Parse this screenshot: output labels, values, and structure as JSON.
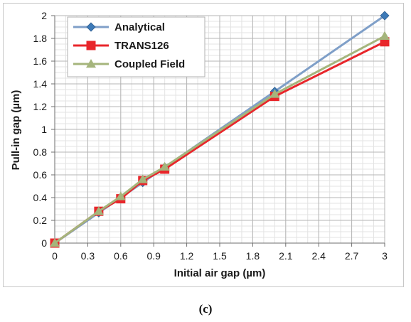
{
  "caption": "(c)",
  "chart_data": {
    "type": "line",
    "xlabel": "Initial air gap (µm)",
    "ylabel": "Pull-in gap (µm)",
    "xlim": [
      0,
      3
    ],
    "ylim": [
      0,
      2
    ],
    "x_ticks": [
      "0",
      "0.3",
      "0.6",
      "0.9",
      "1.2",
      "1.5",
      "1.8",
      "2.1",
      "2.4",
      "2.7",
      "3"
    ],
    "y_ticks": [
      "0",
      "0.2",
      "0.4",
      "0.6",
      "0.8",
      "1",
      "1.2",
      "1.4",
      "1.6",
      "1.8",
      "2"
    ],
    "grid": true,
    "legend_position": "top-left",
    "series": [
      {
        "name": "Analytical",
        "color": "#7f9fc8",
        "marker": "diamond",
        "marker_color": "#3d7ab8",
        "x": [
          0,
          0.4,
          0.6,
          0.8,
          1.0,
          2.0,
          3.0
        ],
        "y": [
          0,
          0.267,
          0.4,
          0.533,
          0.667,
          1.333,
          2.0
        ]
      },
      {
        "name": "TRANS126",
        "color": "#e8262b",
        "marker": "square",
        "marker_color": "#e8262b",
        "x": [
          0,
          0.4,
          0.6,
          0.8,
          1.0,
          2.0,
          3.0
        ],
        "y": [
          0,
          0.28,
          0.39,
          0.55,
          0.65,
          1.29,
          1.77
        ]
      },
      {
        "name": "Coupled Field",
        "color": "#a5b57c",
        "marker": "triangle",
        "marker_color": "#a5b57c",
        "x": [
          0,
          0.4,
          0.6,
          0.8,
          1.0,
          2.0,
          3.0
        ],
        "y": [
          0,
          0.28,
          0.41,
          0.56,
          0.67,
          1.31,
          1.82
        ]
      }
    ]
  }
}
